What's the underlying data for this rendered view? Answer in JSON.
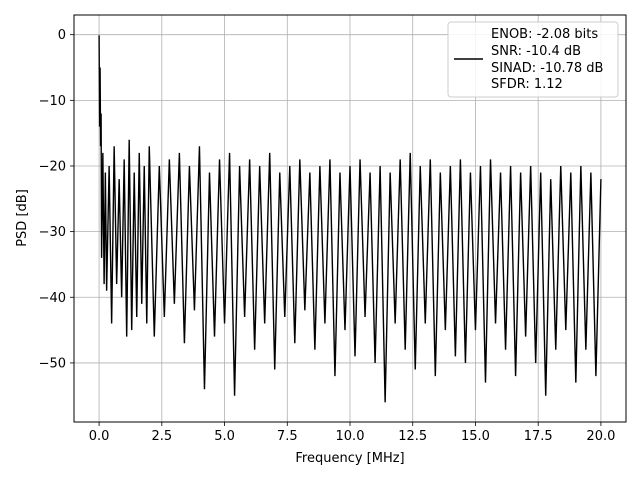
{
  "chart_data": {
    "type": "line",
    "xlabel": "Frequency [MHz]",
    "ylabel": "PSD [dB]",
    "xlim": [
      -1.0,
      21.0
    ],
    "ylim": [
      -59.0,
      3.0
    ],
    "xticks": [
      0.0,
      2.5,
      5.0,
      7.5,
      10.0,
      12.5,
      15.0,
      17.5,
      20.0
    ],
    "xtick_labels": [
      "0.0",
      "2.5",
      "5.0",
      "7.5",
      "10.0",
      "12.5",
      "15.0",
      "17.5",
      "20.0"
    ],
    "yticks": [
      0,
      -10,
      -20,
      -30,
      -40,
      -50
    ],
    "ytick_labels": [
      "0",
      "−10",
      "−20",
      "−30",
      "−40",
      "−50"
    ],
    "grid": true,
    "legend_placement": "top-right",
    "legend_lines": [
      "ENOB: -2.08 bits",
      "SNR: -10.4 dB",
      "SINAD: -10.78 dB",
      "SFDR: 1.12"
    ],
    "line_color": "#000000",
    "series": [
      {
        "x": [
          0.0,
          0.02,
          0.04,
          0.06,
          0.08,
          0.1,
          0.15,
          0.2,
          0.25,
          0.3,
          0.4,
          0.5,
          0.6,
          0.7,
          0.8,
          0.9,
          1.0,
          1.1,
          1.2,
          1.3,
          1.4,
          1.5,
          1.6,
          1.7,
          1.8,
          1.9,
          2.0,
          2.2,
          2.4,
          2.6,
          2.8,
          3.0,
          3.2,
          3.4,
          3.6,
          3.8,
          4.0,
          4.2,
          4.4,
          4.6,
          4.8,
          5.0,
          5.2,
          5.4,
          5.6,
          5.8,
          6.0,
          6.2,
          6.4,
          6.6,
          6.8,
          7.0,
          7.2,
          7.4,
          7.6,
          7.8,
          8.0,
          8.2,
          8.4,
          8.6,
          8.8,
          9.0,
          9.2,
          9.4,
          9.6,
          9.8,
          10.0,
          10.2,
          10.4,
          10.6,
          10.8,
          11.0,
          11.2,
          11.4,
          11.6,
          11.8,
          12.0,
          12.2,
          12.4,
          12.6,
          12.8,
          13.0,
          13.2,
          13.4,
          13.6,
          13.8,
          14.0,
          14.2,
          14.4,
          14.6,
          14.8,
          15.0,
          15.2,
          15.4,
          15.6,
          15.8,
          16.0,
          16.2,
          16.4,
          16.6,
          16.8,
          17.0,
          17.2,
          17.4,
          17.6,
          17.8,
          18.0,
          18.2,
          18.4,
          18.6,
          18.8,
          19.0,
          19.2,
          19.4,
          19.6,
          19.8,
          20.0
        ],
        "y": [
          -0.1,
          -14.0,
          -5.0,
          -17.0,
          -12.0,
          -34.0,
          -18.0,
          -38.0,
          -21.0,
          -39.0,
          -20.0,
          -44.0,
          -17.0,
          -38.0,
          -22.0,
          -40.0,
          -19.0,
          -46.0,
          -16.0,
          -45.0,
          -21.0,
          -43.0,
          -18.0,
          -41.0,
          -20.0,
          -44.0,
          -17.0,
          -46.0,
          -20.0,
          -43.0,
          -19.0,
          -41.0,
          -18.0,
          -47.0,
          -20.0,
          -42.0,
          -17.0,
          -54.0,
          -21.0,
          -46.0,
          -19.0,
          -44.0,
          -18.0,
          -55.0,
          -20.0,
          -43.0,
          -19.0,
          -48.0,
          -20.0,
          -44.0,
          -18.0,
          -51.0,
          -21.0,
          -43.0,
          -20.0,
          -47.0,
          -19.0,
          -42.0,
          -21.0,
          -48.0,
          -20.0,
          -44.0,
          -19.0,
          -52.0,
          -21.0,
          -45.0,
          -20.0,
          -49.0,
          -19.0,
          -43.0,
          -21.0,
          -50.0,
          -20.0,
          -56.0,
          -21.0,
          -44.0,
          -19.0,
          -48.0,
          -18.0,
          -51.0,
          -20.0,
          -44.0,
          -19.0,
          -52.0,
          -21.0,
          -45.0,
          -20.0,
          -49.0,
          -19.0,
          -50.0,
          -21.0,
          -45.0,
          -20.0,
          -53.0,
          -19.0,
          -44.0,
          -21.0,
          -48.0,
          -20.0,
          -52.0,
          -21.0,
          -46.0,
          -20.0,
          -50.0,
          -21.0,
          -55.0,
          -22.0,
          -48.0,
          -20.0,
          -45.0,
          -21.0,
          -53.0,
          -20.0,
          -48.0,
          -21.0,
          -52.0,
          -22.0
        ]
      }
    ]
  }
}
